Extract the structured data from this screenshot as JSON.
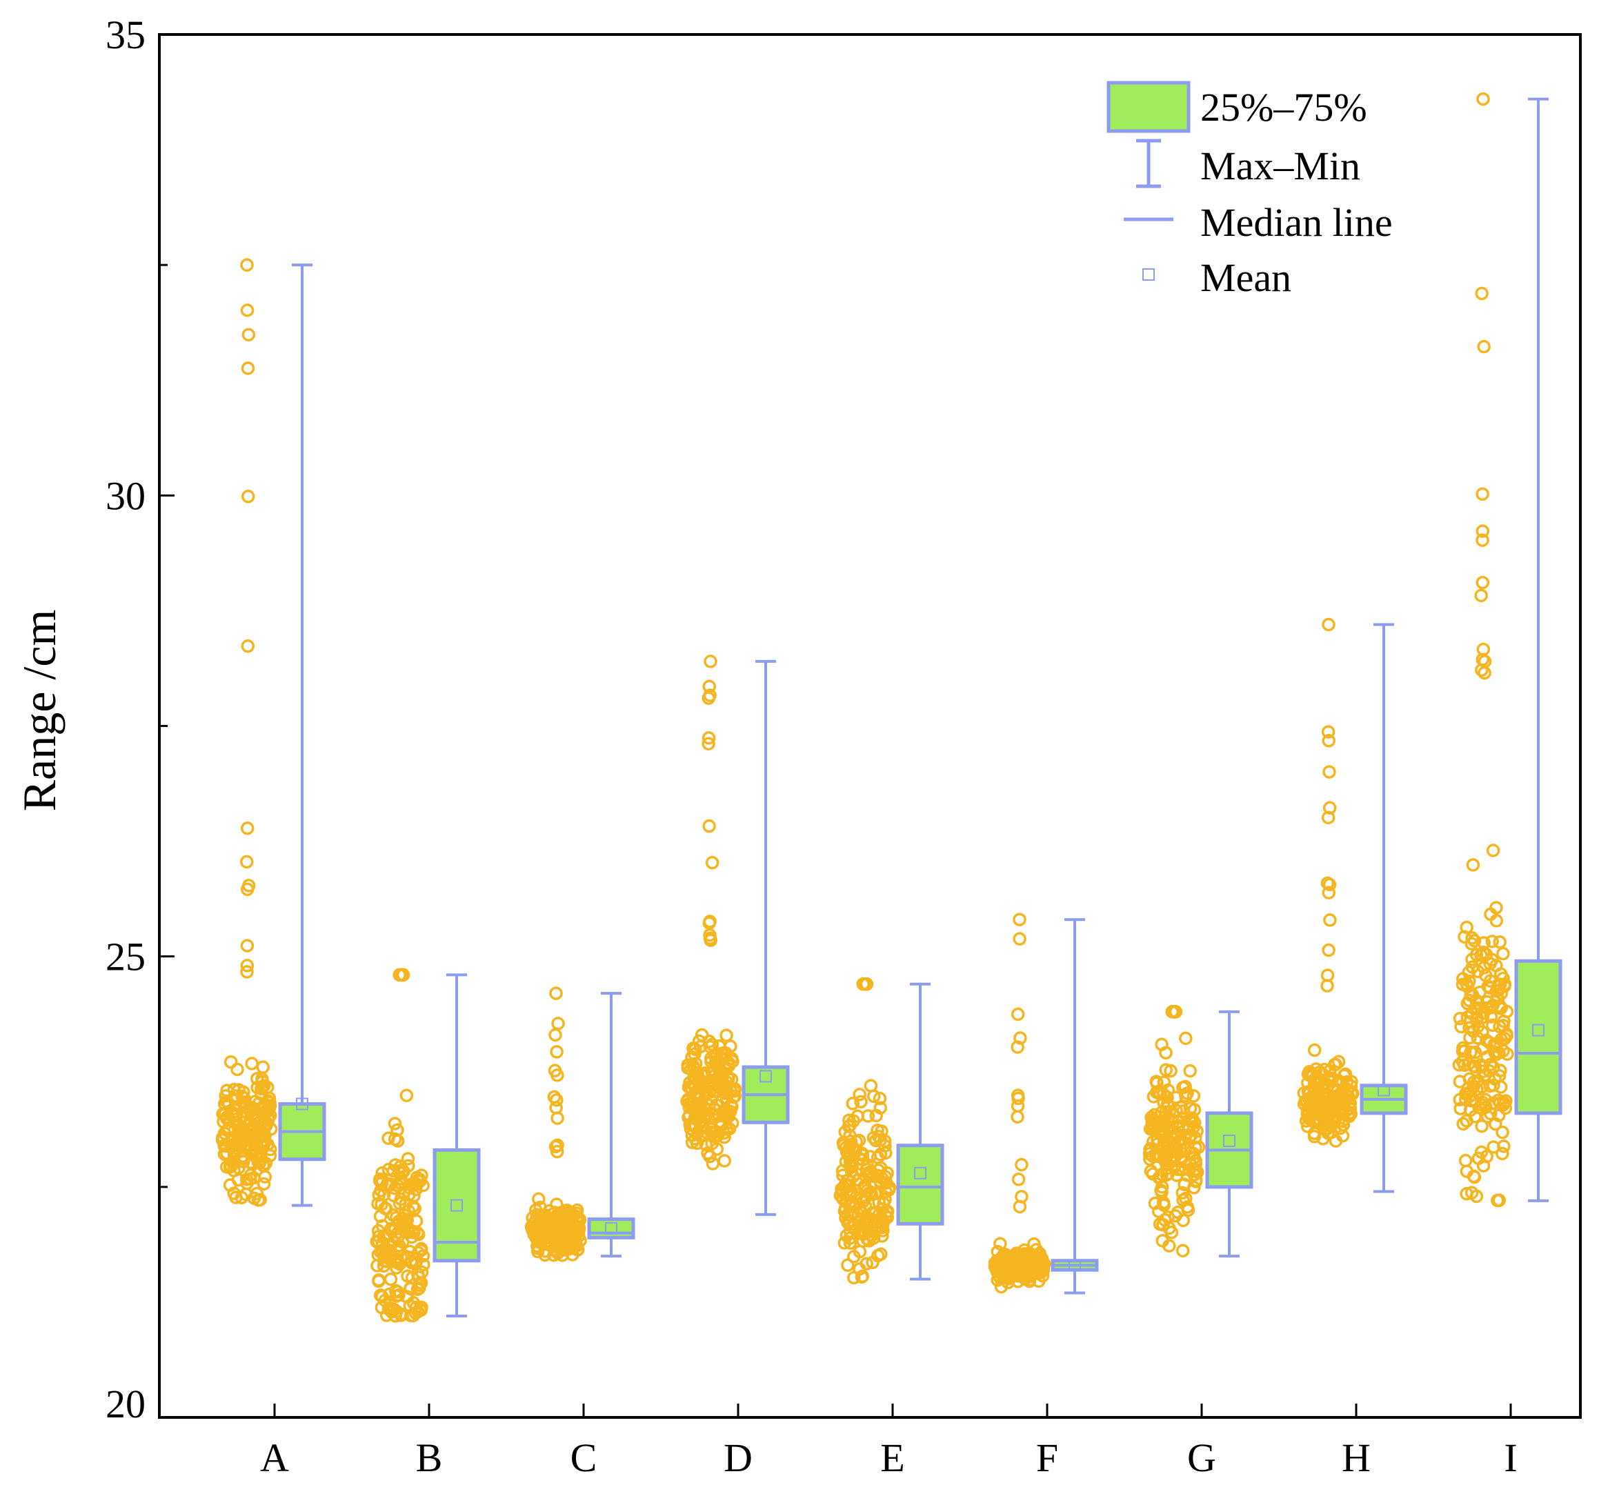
{
  "chart_data": {
    "type": "box",
    "title": "",
    "xlabel": "",
    "ylabel": "Range /cm",
    "ylim": [
      20,
      35
    ],
    "yticks": [
      "20",
      "25",
      "30",
      "35"
    ],
    "categories": [
      "A",
      "B",
      "C",
      "D",
      "E",
      "F",
      "G",
      "H",
      "I"
    ],
    "boxes": [
      {
        "name": "A",
        "min": 22.3,
        "q1": 22.8,
        "median": 23.1,
        "q3": 23.4,
        "max": 32.5,
        "mean": 23.4
      },
      {
        "name": "B",
        "min": 21.1,
        "q1": 21.7,
        "median": 21.9,
        "q3": 22.9,
        "max": 24.8,
        "mean": 22.3
      },
      {
        "name": "C",
        "min": 21.75,
        "q1": 21.95,
        "median": 22.0,
        "q3": 22.15,
        "max": 24.6,
        "mean": 22.05
      },
      {
        "name": "D",
        "min": 22.2,
        "q1": 23.2,
        "median": 23.5,
        "q3": 23.8,
        "max": 28.2,
        "mean": 23.7
      },
      {
        "name": "E",
        "min": 21.5,
        "q1": 22.1,
        "median": 22.5,
        "q3": 22.95,
        "max": 24.7,
        "mean": 22.65
      },
      {
        "name": "F",
        "min": 21.35,
        "q1": 21.6,
        "median": 21.65,
        "q3": 21.7,
        "max": 25.4,
        "mean": 21.65
      },
      {
        "name": "G",
        "min": 21.75,
        "q1": 22.5,
        "median": 22.9,
        "q3": 23.3,
        "max": 24.4,
        "mean": 23.0
      },
      {
        "name": "H",
        "min": 22.45,
        "q1": 23.3,
        "median": 23.45,
        "q3": 23.6,
        "max": 28.6,
        "mean": 23.55
      },
      {
        "name": "I",
        "min": 22.35,
        "q1": 23.3,
        "median": 23.95,
        "q3": 24.95,
        "max": 34.3,
        "mean": 24.2
      }
    ],
    "legend": {
      "position": "top-right",
      "items": [
        "25%–75%",
        "Max–Min",
        "Median line",
        "Mean"
      ]
    },
    "colors": {
      "box_fill": "#a0ec5a",
      "box_stroke": "#8c9cf0",
      "points": "#f5b520",
      "axis": "#000000"
    }
  }
}
